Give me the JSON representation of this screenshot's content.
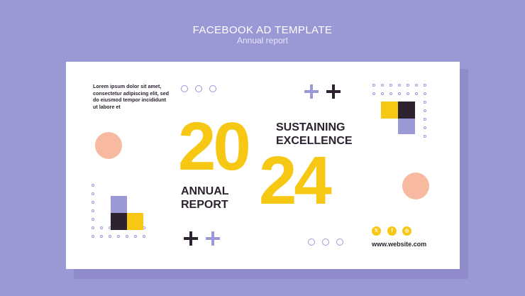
{
  "header": {
    "title": "FACEBOOK AD TEMPLATE",
    "subtitle": "Annual report"
  },
  "card": {
    "lorem": "Lorem ipsum dolor sit amet, consectetur adipiscing elit, sed do eiusmod tempor incididunt ut labore et",
    "year_top": "20",
    "year_bottom": "24",
    "headline_line1": "SUSTAINING",
    "headline_line2": "EXCELLENCE",
    "sub_line1": "ANNUAL",
    "sub_line2": "REPORT",
    "website": "www.website.com",
    "social_icons": [
      "x-icon",
      "facebook-icon",
      "instagram-icon"
    ]
  },
  "colors": {
    "background": "#9b98d6",
    "yellow": "#f6c713",
    "dark": "#2d2230",
    "peach": "#f8b9a1",
    "lavender": "#9b98d6"
  }
}
